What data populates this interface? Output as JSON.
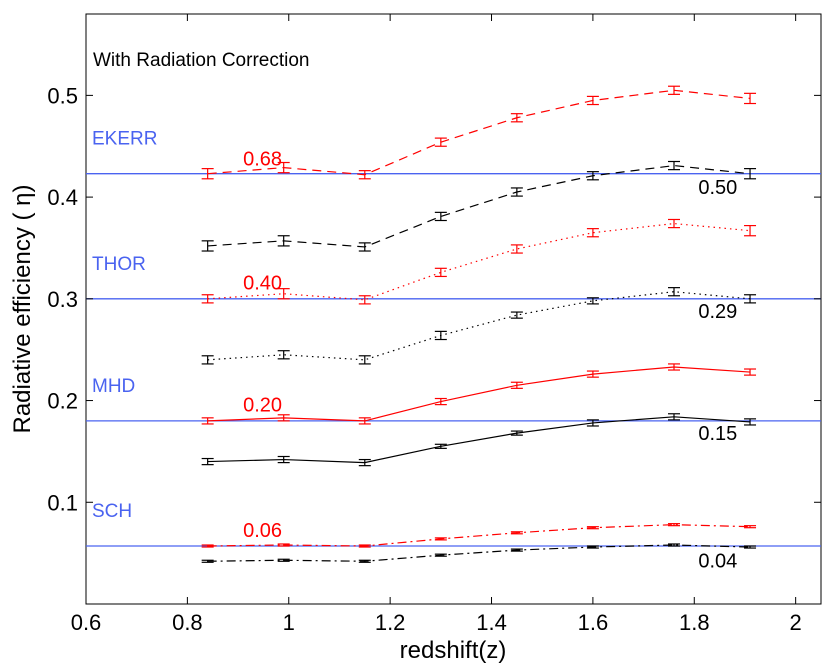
{
  "chart_data": {
    "type": "line",
    "title": "With Radiation Correction",
    "xlabel": "redshift(z)",
    "ylabel": "Radiative efficiency ( η)",
    "xlim": [
      0.6,
      2.05
    ],
    "ylim": [
      0.0,
      0.58
    ],
    "x_ticks": [
      0.6,
      0.8,
      1.0,
      1.2,
      1.4,
      1.6,
      1.8,
      2.0
    ],
    "x_tick_labels": [
      "0.6",
      "0.8",
      "1",
      "1.2",
      "1.4",
      "1.6",
      "1.8",
      "2"
    ],
    "y_ticks": [
      0.1,
      0.2,
      0.3,
      0.4,
      0.5
    ],
    "y_tick_labels": [
      "0.1",
      "0.2",
      "0.3",
      "0.4",
      "0.5"
    ],
    "grid": false,
    "x": [
      0.84,
      0.99,
      1.15,
      1.3,
      1.45,
      1.6,
      1.76,
      1.91
    ],
    "series": [
      {
        "name": "EKERR red",
        "color": "#ff0000",
        "style": "dashed",
        "values": [
          0.423,
          0.429,
          0.422,
          0.454,
          0.478,
          0.495,
          0.505,
          0.497
        ],
        "errors": [
          0.005,
          0.005,
          0.004,
          0.004,
          0.004,
          0.004,
          0.004,
          0.005
        ]
      },
      {
        "name": "EKERR black",
        "color": "#000000",
        "style": "dashed",
        "values": [
          0.352,
          0.357,
          0.351,
          0.381,
          0.405,
          0.421,
          0.431,
          0.423
        ],
        "errors": [
          0.005,
          0.005,
          0.004,
          0.004,
          0.004,
          0.004,
          0.004,
          0.005
        ]
      },
      {
        "name": "THOR red",
        "color": "#ff0000",
        "style": "dotted",
        "values": [
          0.3,
          0.305,
          0.299,
          0.326,
          0.349,
          0.365,
          0.374,
          0.367
        ],
        "errors": [
          0.004,
          0.005,
          0.004,
          0.004,
          0.004,
          0.004,
          0.004,
          0.005
        ]
      },
      {
        "name": "THOR black",
        "color": "#000000",
        "style": "dotted",
        "values": [
          0.24,
          0.245,
          0.24,
          0.264,
          0.284,
          0.298,
          0.307,
          0.3
        ],
        "errors": [
          0.004,
          0.004,
          0.004,
          0.004,
          0.003,
          0.003,
          0.004,
          0.004
        ]
      },
      {
        "name": "MHD red",
        "color": "#ff0000",
        "style": "solid",
        "values": [
          0.18,
          0.183,
          0.18,
          0.199,
          0.215,
          0.226,
          0.233,
          0.228
        ],
        "errors": [
          0.003,
          0.003,
          0.003,
          0.003,
          0.003,
          0.003,
          0.003,
          0.003
        ]
      },
      {
        "name": "MHD black",
        "color": "#000000",
        "style": "solid",
        "values": [
          0.14,
          0.142,
          0.139,
          0.155,
          0.168,
          0.178,
          0.184,
          0.179
        ],
        "errors": [
          0.003,
          0.003,
          0.003,
          0.002,
          0.002,
          0.003,
          0.003,
          0.003
        ]
      },
      {
        "name": "SCH red",
        "color": "#ff0000",
        "style": "dashdot",
        "values": [
          0.057,
          0.058,
          0.057,
          0.064,
          0.07,
          0.075,
          0.078,
          0.076
        ],
        "errors": [
          0.001,
          0.001,
          0.001,
          0.001,
          0.001,
          0.001,
          0.001,
          0.001
        ]
      },
      {
        "name": "SCH black",
        "color": "#000000",
        "style": "dashdot",
        "values": [
          0.042,
          0.043,
          0.042,
          0.048,
          0.053,
          0.056,
          0.058,
          0.056
        ],
        "errors": [
          0.001,
          0.001,
          0.001,
          0.001,
          0.001,
          0.001,
          0.001,
          0.001
        ]
      }
    ],
    "reference_lines": [
      {
        "label": "EKERR",
        "value": 0.423,
        "color": "#4a63f0"
      },
      {
        "label": "THOR",
        "value": 0.3,
        "color": "#4a63f0"
      },
      {
        "label": "MHD",
        "value": 0.18,
        "color": "#4a63f0"
      },
      {
        "label": "SCH",
        "value": 0.057,
        "color": "#4a63f0"
      }
    ],
    "annotations": [
      {
        "text": "0.68",
        "color": "#ff0000",
        "at_x": 0.91,
        "at_y": 0.431
      },
      {
        "text": "0.50",
        "color": "#000000",
        "at_x": 1.808,
        "at_y": 0.403
      },
      {
        "text": "0.40",
        "color": "#ff0000",
        "at_x": 0.91,
        "at_y": 0.309
      },
      {
        "text": "0.29",
        "color": "#000000",
        "at_x": 1.808,
        "at_y": 0.281
      },
      {
        "text": "0.20",
        "color": "#ff0000",
        "at_x": 0.91,
        "at_y": 0.189
      },
      {
        "text": "0.15",
        "color": "#000000",
        "at_x": 1.808,
        "at_y": 0.161
      },
      {
        "text": "0.06",
        "color": "#ff0000",
        "at_x": 0.91,
        "at_y": 0.066
      },
      {
        "text": "0.04",
        "color": "#000000",
        "at_x": 1.808,
        "at_y": 0.036
      }
    ]
  }
}
